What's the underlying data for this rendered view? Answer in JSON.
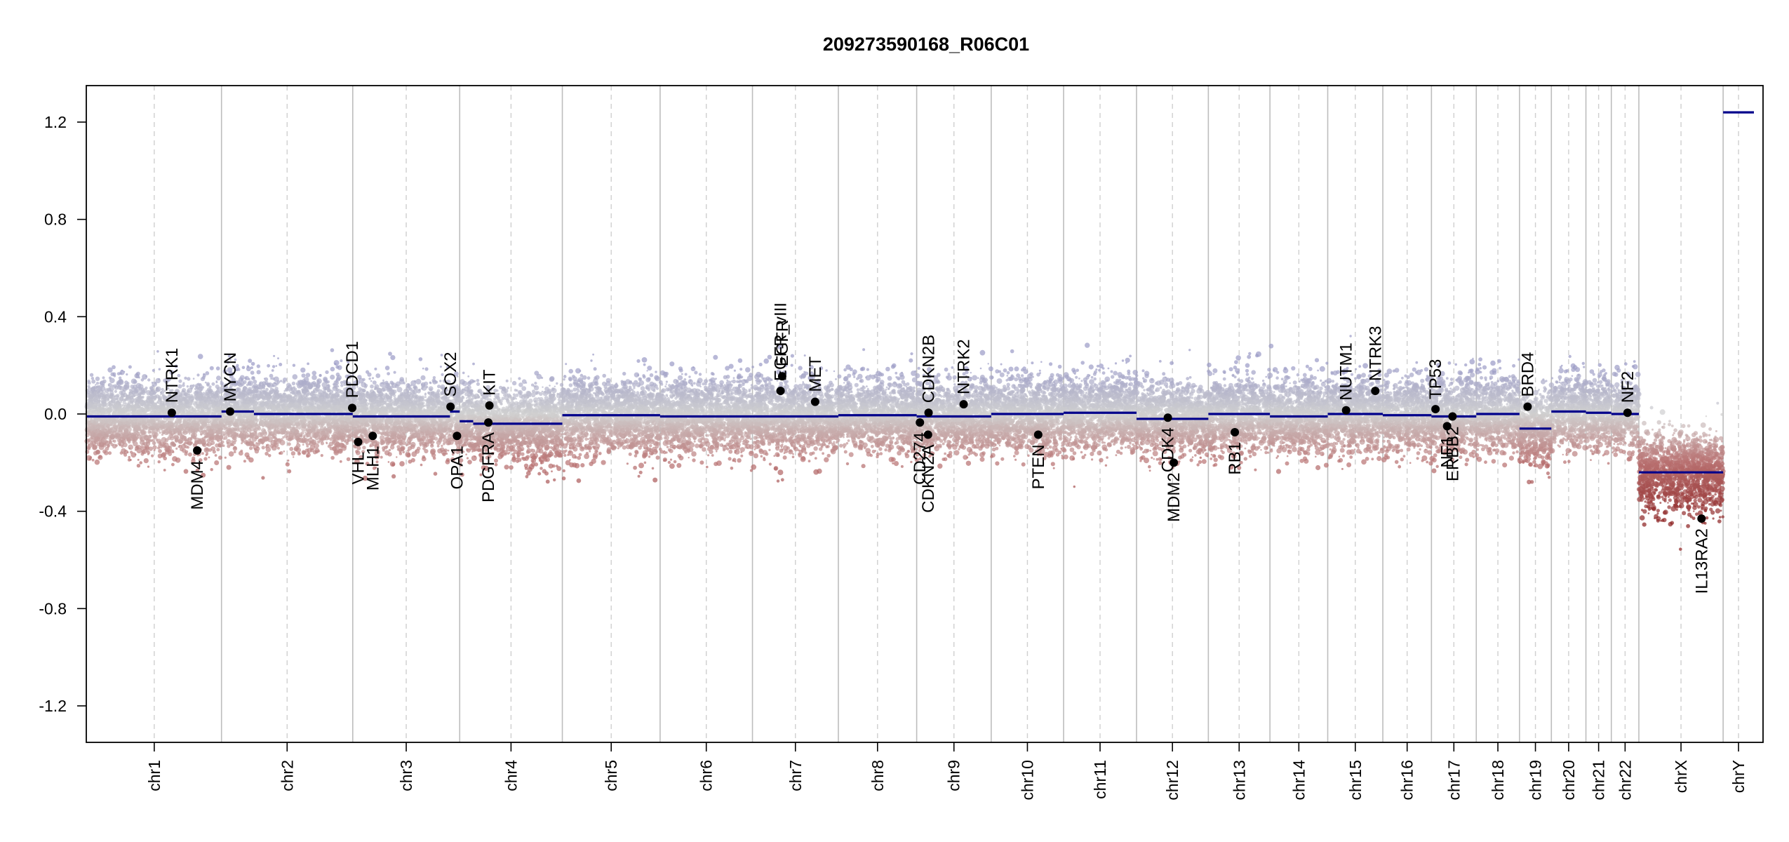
{
  "chart_data": {
    "type": "scatter",
    "title": "209273590168_R06C01",
    "xlabel": "",
    "ylabel": "",
    "ylim": [
      -1.35,
      1.35
    ],
    "y_ticks": [
      -1.2,
      -0.8,
      -0.4,
      0.0,
      0.4,
      0.8,
      1.2
    ],
    "y_tick_labels": [
      "-1.2",
      "-0.8",
      "-0.4",
      "0.0",
      "0.4",
      "0.8",
      "1.2"
    ],
    "grid": false,
    "legend": "none",
    "colors": {
      "gain": "#9a9ac6",
      "neutral": "#d0d0d0",
      "loss": "#b87070",
      "deep_loss": "#8b2020",
      "segment": "#00008b",
      "gene_point": "#000000"
    },
    "chromosomes": [
      {
        "name": "chr1",
        "length": 249
      },
      {
        "name": "chr2",
        "length": 243
      },
      {
        "name": "chr3",
        "length": 198
      },
      {
        "name": "chr4",
        "length": 190
      },
      {
        "name": "chr5",
        "length": 181
      },
      {
        "name": "chr6",
        "length": 171
      },
      {
        "name": "chr7",
        "length": 159
      },
      {
        "name": "chr8",
        "length": 145
      },
      {
        "name": "chr9",
        "length": 138
      },
      {
        "name": "chr10",
        "length": 134
      },
      {
        "name": "chr11",
        "length": 135
      },
      {
        "name": "chr12",
        "length": 133
      },
      {
        "name": "chr13",
        "length": 114
      },
      {
        "name": "chr14",
        "length": 107
      },
      {
        "name": "chr15",
        "length": 102
      },
      {
        "name": "chr16",
        "length": 90
      },
      {
        "name": "chr17",
        "length": 83
      },
      {
        "name": "chr18",
        "length": 80
      },
      {
        "name": "chr19",
        "length": 59
      },
      {
        "name": "chr20",
        "length": 64
      },
      {
        "name": "chr21",
        "length": 47
      },
      {
        "name": "chr22",
        "length": 51
      },
      {
        "name": "chrX",
        "length": 156
      },
      {
        "name": "chrY",
        "length": 57
      }
    ],
    "segments": [
      {
        "chr": "chr1",
        "start": 0,
        "end": 249,
        "value": -0.01
      },
      {
        "chr": "chr2",
        "start": 0,
        "end": 60,
        "value": 0.01
      },
      {
        "chr": "chr2",
        "start": 60,
        "end": 243,
        "value": 0.0
      },
      {
        "chr": "chr3",
        "start": 0,
        "end": 180,
        "value": -0.01
      },
      {
        "chr": "chr3",
        "start": 180,
        "end": 198,
        "value": 0.01
      },
      {
        "chr": "chr4",
        "start": 0,
        "end": 25,
        "value": -0.03
      },
      {
        "chr": "chr4",
        "start": 25,
        "end": 190,
        "value": -0.04
      },
      {
        "chr": "chr5",
        "start": 0,
        "end": 181,
        "value": -0.005
      },
      {
        "chr": "chr6",
        "start": 0,
        "end": 171,
        "value": -0.01
      },
      {
        "chr": "chr7",
        "start": 0,
        "end": 159,
        "value": -0.01
      },
      {
        "chr": "chr8",
        "start": 0,
        "end": 145,
        "value": -0.005
      },
      {
        "chr": "chr9",
        "start": 0,
        "end": 138,
        "value": -0.01
      },
      {
        "chr": "chr10",
        "start": 0,
        "end": 134,
        "value": 0.0
      },
      {
        "chr": "chr11",
        "start": 0,
        "end": 135,
        "value": 0.005
      },
      {
        "chr": "chr12",
        "start": 0,
        "end": 133,
        "value": -0.02
      },
      {
        "chr": "chr13",
        "start": 0,
        "end": 114,
        "value": 0.0
      },
      {
        "chr": "chr14",
        "start": 0,
        "end": 107,
        "value": -0.01
      },
      {
        "chr": "chr15",
        "start": 0,
        "end": 102,
        "value": 0.0
      },
      {
        "chr": "chr16",
        "start": 0,
        "end": 90,
        "value": -0.005
      },
      {
        "chr": "chr17",
        "start": 0,
        "end": 83,
        "value": -0.01
      },
      {
        "chr": "chr18",
        "start": 0,
        "end": 80,
        "value": 0.0
      },
      {
        "chr": "chr19",
        "start": 0,
        "end": 59,
        "value": -0.06
      },
      {
        "chr": "chr20",
        "start": 0,
        "end": 64,
        "value": 0.01
      },
      {
        "chr": "chr21",
        "start": 0,
        "end": 47,
        "value": 0.005
      },
      {
        "chr": "chr22",
        "start": 0,
        "end": 51,
        "value": 0.0
      },
      {
        "chr": "chrX",
        "start": 0,
        "end": 156,
        "value": -0.24
      },
      {
        "chr": "chrY",
        "start": 0,
        "end": 57,
        "value": 1.24
      }
    ],
    "genes": [
      {
        "name": "NTRK1",
        "chr": "chr1",
        "pos": 157,
        "value": 0.005,
        "label_side": "above"
      },
      {
        "name": "MDM4",
        "chr": "chr1",
        "pos": 204,
        "value": -0.15,
        "label_side": "below"
      },
      {
        "name": "MYCN",
        "chr": "chr2",
        "pos": 16,
        "value": 0.01,
        "label_side": "above"
      },
      {
        "name": "PDCD1",
        "chr": "chr2",
        "pos": 242,
        "value": 0.025,
        "label_side": "above"
      },
      {
        "name": "VHL",
        "chr": "chr3",
        "pos": 10,
        "value": -0.115,
        "label_side": "below"
      },
      {
        "name": "MLH1",
        "chr": "chr3",
        "pos": 37,
        "value": -0.09,
        "label_side": "below"
      },
      {
        "name": "SOX2",
        "chr": "chr3",
        "pos": 181,
        "value": 0.03,
        "label_side": "above"
      },
      {
        "name": "OPA1",
        "chr": "chr3",
        "pos": 193,
        "value": -0.09,
        "label_side": "below"
      },
      {
        "name": "KIT",
        "chr": "chr4",
        "pos": 55,
        "value": 0.035,
        "label_side": "above"
      },
      {
        "name": "PDGFRA",
        "chr": "chr4",
        "pos": 53,
        "value": -0.035,
        "label_side": "below"
      },
      {
        "name": "EGFR",
        "chr": "chr7",
        "pos": 55,
        "value": 0.155,
        "label_side": "above"
      },
      {
        "name": "EGFR_vIII",
        "chr": "chr7",
        "pos": 52,
        "value": 0.095,
        "label_side": "above"
      },
      {
        "name": "MET",
        "chr": "chr7",
        "pos": 116,
        "value": 0.05,
        "label_side": "above"
      },
      {
        "name": "CD274",
        "chr": "chr9",
        "pos": 6,
        "value": -0.035,
        "label_side": "below"
      },
      {
        "name": "CDKN2A",
        "chr": "chr9",
        "pos": 21,
        "value": -0.085,
        "label_side": "below"
      },
      {
        "name": "CDKN2B",
        "chr": "chr9",
        "pos": 22,
        "value": 0.005,
        "label_side": "above"
      },
      {
        "name": "NTRK2",
        "chr": "chr9",
        "pos": 87,
        "value": 0.04,
        "label_side": "above"
      },
      {
        "name": "PTEN",
        "chr": "chr10",
        "pos": 87,
        "value": -0.085,
        "label_side": "below"
      },
      {
        "name": "MDM2",
        "chr": "chr12",
        "pos": 69,
        "value": -0.2,
        "label_side": "below"
      },
      {
        "name": "CDK4",
        "chr": "chr12",
        "pos": 58,
        "value": -0.015,
        "label_side": "below"
      },
      {
        "name": "RB1",
        "chr": "chr13",
        "pos": 49,
        "value": -0.075,
        "label_side": "below"
      },
      {
        "name": "NUTM1",
        "chr": "chr15",
        "pos": 34,
        "value": 0.015,
        "label_side": "above"
      },
      {
        "name": "NTRK3",
        "chr": "chr15",
        "pos": 88,
        "value": 0.095,
        "label_side": "above"
      },
      {
        "name": "TP53",
        "chr": "chr17",
        "pos": 7.5,
        "value": 0.02,
        "label_side": "above"
      },
      {
        "name": "NF1",
        "chr": "chr17",
        "pos": 29,
        "value": -0.05,
        "label_side": "below"
      },
      {
        "name": "ERBB2",
        "chr": "chr17",
        "pos": 39,
        "value": -0.01,
        "label_side": "below"
      },
      {
        "name": "BRD4",
        "chr": "chr19",
        "pos": 15,
        "value": 0.03,
        "label_side": "above"
      },
      {
        "name": "NF2",
        "chr": "chr22",
        "pos": 30,
        "value": 0.005,
        "label_side": "above"
      },
      {
        "name": "IL13RA2",
        "chr": "chrX",
        "pos": 116,
        "value": -0.43,
        "label_side": "below"
      }
    ]
  }
}
